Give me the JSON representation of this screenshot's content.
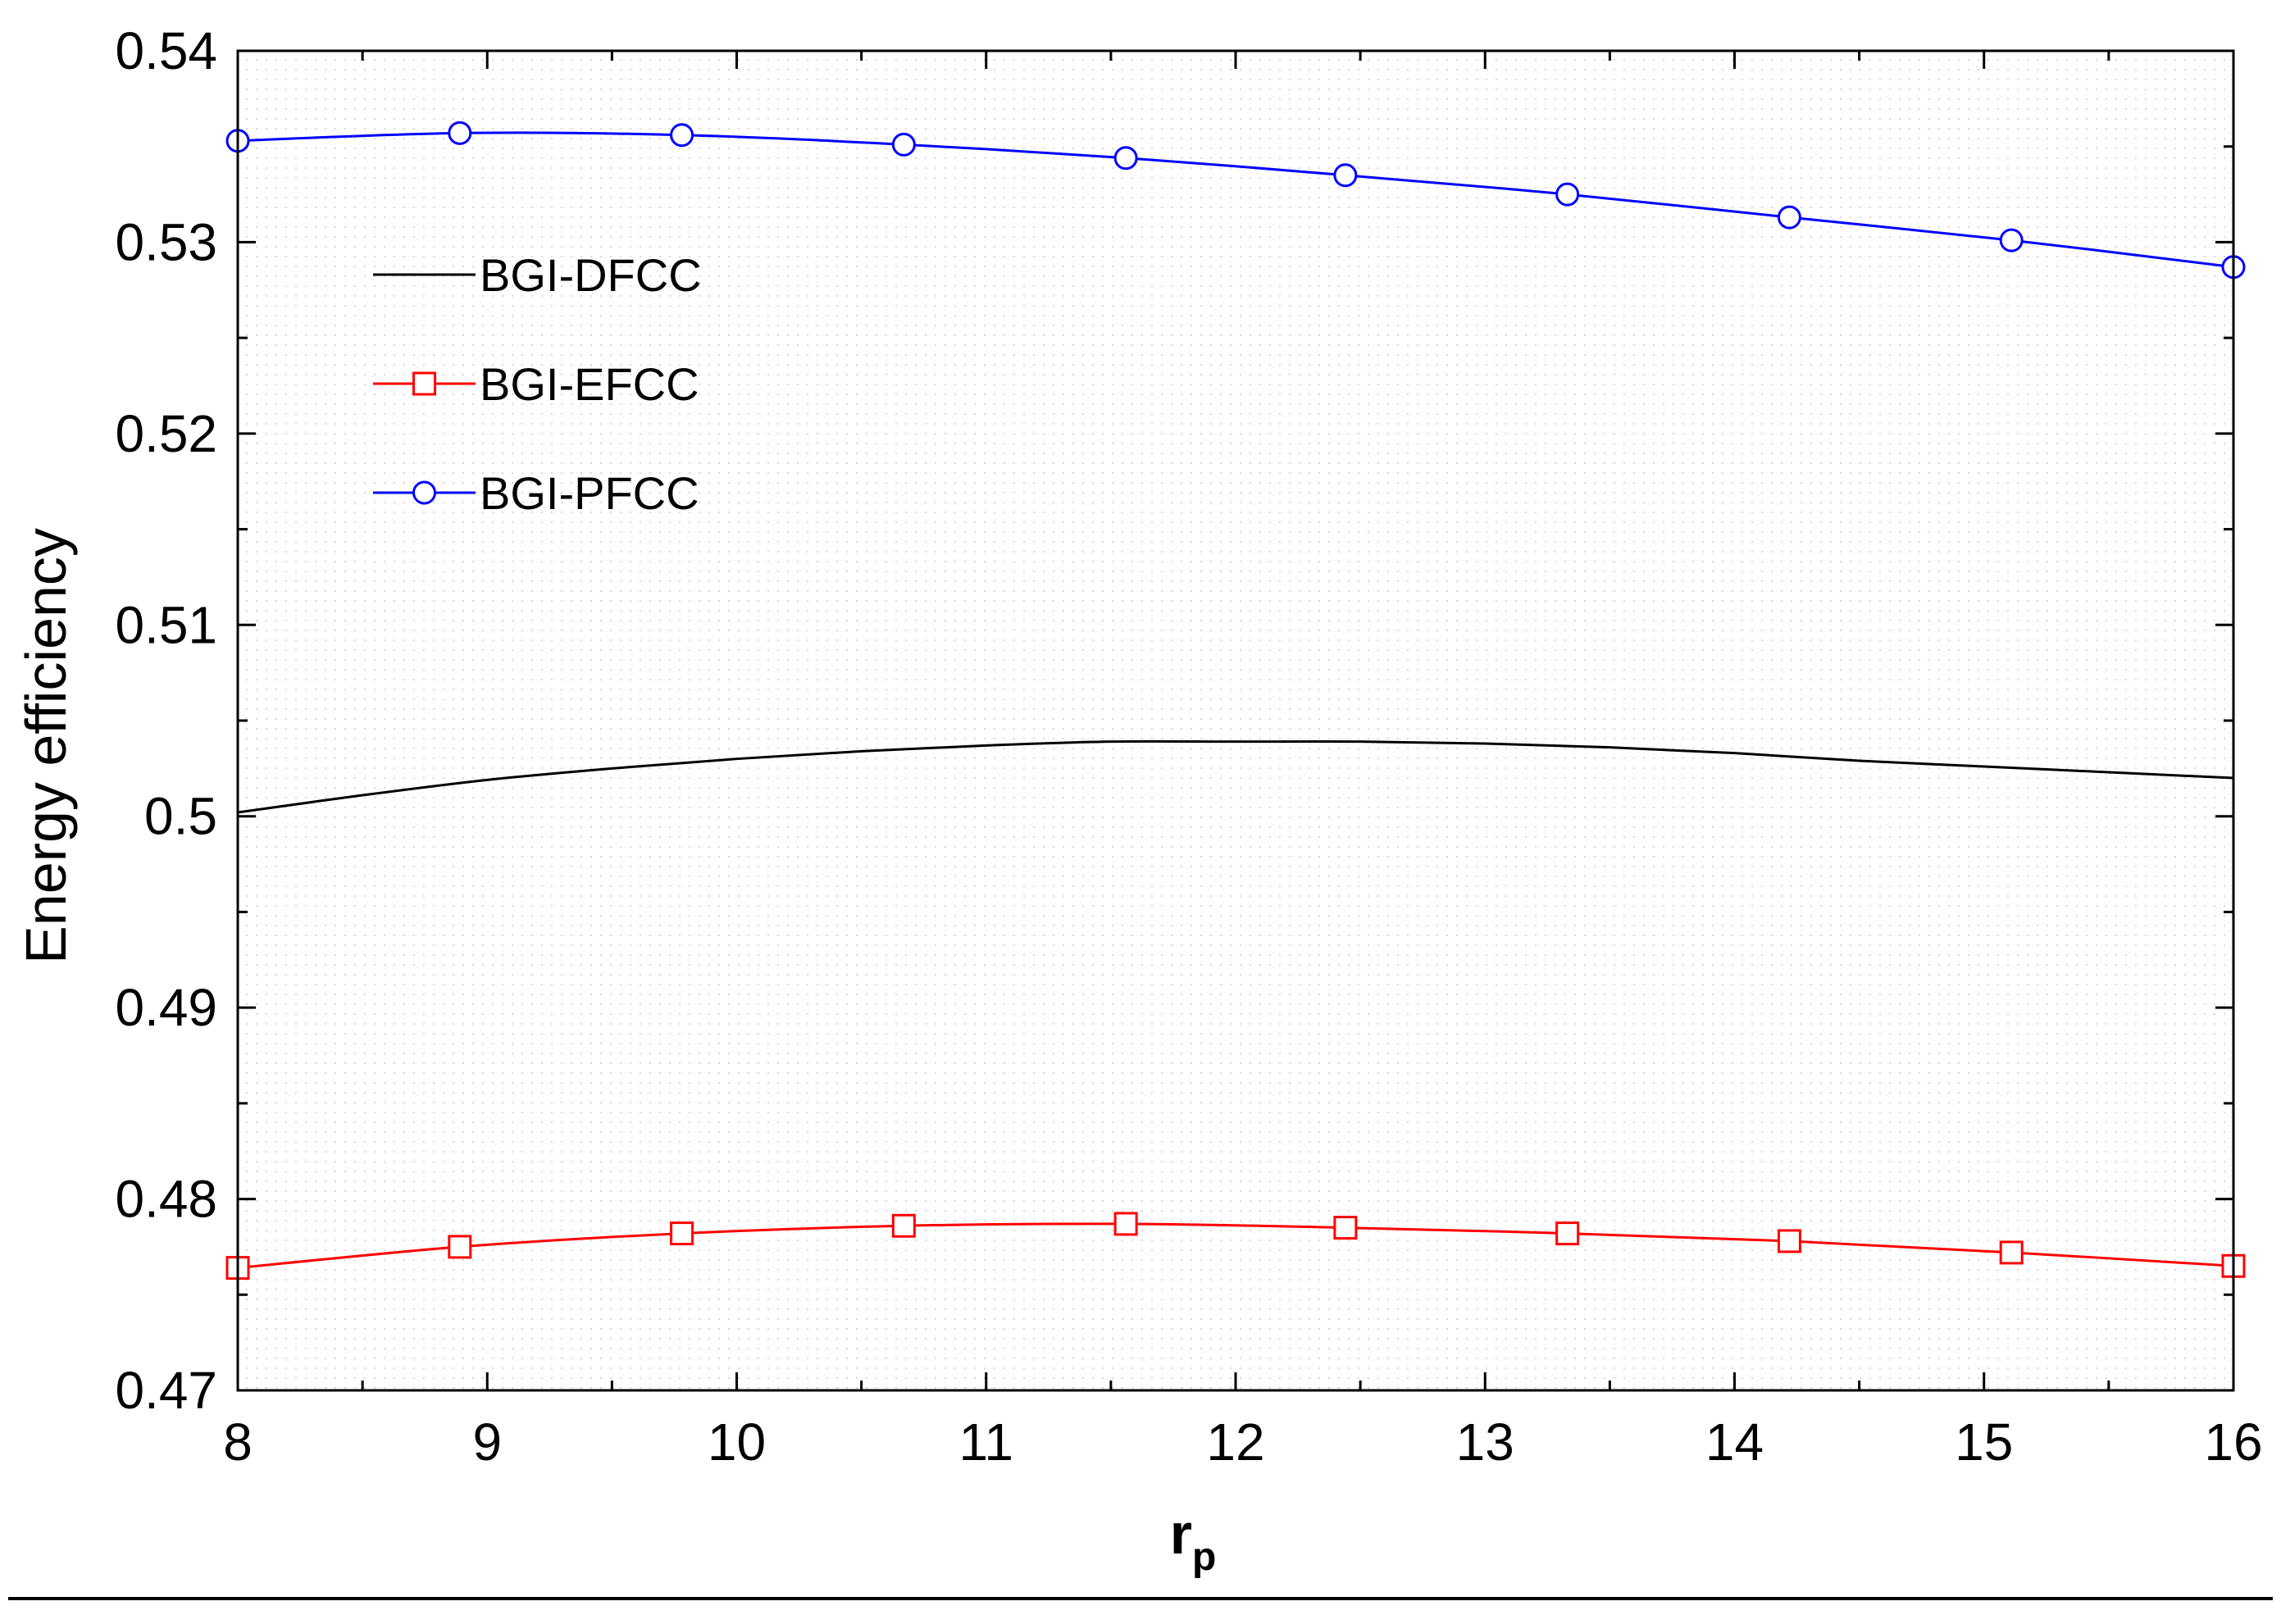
{
  "chart_data": {
    "type": "line",
    "title": "",
    "xlabel": "r",
    "xlabel_sub": "p",
    "ylabel": "Energy efficiency",
    "xlim": [
      8,
      16
    ],
    "ylim": [
      0.47,
      0.54
    ],
    "xticks": [
      "8",
      "9",
      "10",
      "11",
      "12",
      "13",
      "14",
      "15",
      "16"
    ],
    "yticks": [
      "0.47",
      "0.48",
      "0.49",
      "0.5",
      "0.51",
      "0.52",
      "0.53",
      "0.54"
    ],
    "grid": true,
    "legend_position": "upper-left",
    "series": [
      {
        "name": "BGI-DFCC",
        "color": "#000000",
        "marker": "none",
        "x": [
          8,
          8.5,
          9,
          9.5,
          10,
          10.5,
          11,
          11.5,
          12,
          12.5,
          13,
          13.5,
          14,
          14.5,
          15,
          15.5,
          16
        ],
        "y": [
          0.5002,
          0.5011,
          0.5019,
          0.5025,
          0.503,
          0.5034,
          0.5037,
          0.5039,
          0.5039,
          0.5039,
          0.5038,
          0.5036,
          0.5033,
          0.5029,
          0.5026,
          0.5023,
          0.502
        ]
      },
      {
        "name": "BGI-EFCC",
        "color": "#ff0000",
        "marker": "square",
        "x": [
          8,
          8.89,
          9.78,
          10.67,
          11.56,
          12.44,
          13.33,
          14.22,
          15.11,
          16
        ],
        "y": [
          0.4764,
          0.4775,
          0.4782,
          0.4786,
          0.4787,
          0.4785,
          0.4782,
          0.4778,
          0.4772,
          0.4765
        ]
      },
      {
        "name": "BGI-PFCC",
        "color": "#0000ff",
        "marker": "circle",
        "x": [
          8,
          8.89,
          9.78,
          10.67,
          11.56,
          12.44,
          13.33,
          14.22,
          15.11,
          16
        ],
        "y": [
          0.5353,
          0.5357,
          0.5356,
          0.5351,
          0.5344,
          0.5335,
          0.5325,
          0.5313,
          0.5301,
          0.5287
        ]
      }
    ]
  }
}
